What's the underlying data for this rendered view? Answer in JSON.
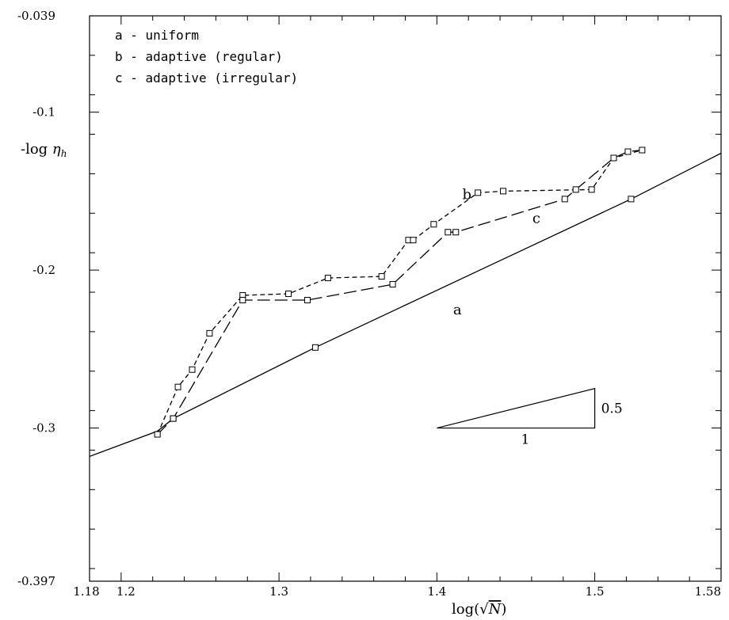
{
  "chart_data": {
    "type": "line",
    "title": "",
    "xlabel": "log(√N)",
    "ylabel": "-log η_h",
    "xlim": [
      1.18,
      1.58
    ],
    "ylim": [
      -0.397,
      -0.039
    ],
    "x_ticks_labeled": [
      "1.18",
      "1.2",
      "1.3",
      "1.4",
      "1.5",
      "1.58"
    ],
    "x_tick_values": [
      1.18,
      1.2,
      1.3,
      1.4,
      1.5,
      1.58
    ],
    "y_ticks_labeled": [
      "-0.039",
      "-0.1",
      "-0.2",
      "-0.3",
      "-0.397"
    ],
    "y_tick_values": [
      -0.039,
      -0.1,
      -0.2,
      -0.3,
      -0.397
    ],
    "grid": false,
    "legend_position": "top-left",
    "legend": [
      "a - uniform",
      "b - adaptive (regular)",
      "c - adaptive (irregular)"
    ],
    "series": [
      {
        "name": "a",
        "line_style": "solid",
        "color": "#000000",
        "x": [
          1.18,
          1.223,
          1.233,
          1.323,
          1.523,
          1.58
        ],
        "y": [
          -0.318,
          -0.302,
          -0.294,
          -0.249,
          -0.155,
          -0.126
        ],
        "marker_x": [
          1.233,
          1.323,
          1.523
        ],
        "marker_y": [
          -0.294,
          -0.249,
          -0.155
        ]
      },
      {
        "name": "b",
        "line_style": "dashed",
        "color": "#000000",
        "x": [
          1.223,
          1.236,
          1.245,
          1.256,
          1.277,
          1.306,
          1.331,
          1.365,
          1.382,
          1.385,
          1.398,
          1.426,
          1.442,
          1.498,
          1.512,
          1.53
        ],
        "y": [
          -0.304,
          -0.274,
          -0.263,
          -0.24,
          -0.216,
          -0.215,
          -0.205,
          -0.204,
          -0.181,
          -0.181,
          -0.171,
          -0.151,
          -0.15,
          -0.149,
          -0.129,
          -0.124
        ],
        "marker_x": [
          1.223,
          1.236,
          1.245,
          1.256,
          1.277,
          1.306,
          1.331,
          1.365,
          1.382,
          1.385,
          1.398,
          1.426,
          1.442,
          1.498,
          1.512,
          1.53
        ],
        "marker_y": [
          -0.304,
          -0.274,
          -0.263,
          -0.24,
          -0.216,
          -0.215,
          -0.205,
          -0.204,
          -0.181,
          -0.181,
          -0.171,
          -0.151,
          -0.15,
          -0.149,
          -0.129,
          -0.124
        ]
      },
      {
        "name": "c",
        "line_style": "long-dashed",
        "color": "#000000",
        "x": [
          1.223,
          1.233,
          1.277,
          1.318,
          1.372,
          1.407,
          1.412,
          1.481,
          1.488,
          1.512,
          1.521,
          1.53
        ],
        "y": [
          -0.304,
          -0.294,
          -0.219,
          -0.219,
          -0.209,
          -0.176,
          -0.176,
          -0.155,
          -0.149,
          -0.129,
          -0.125,
          -0.124
        ],
        "marker_x": [
          1.233,
          1.277,
          1.318,
          1.372,
          1.407,
          1.412,
          1.481,
          1.488,
          1.521
        ],
        "marker_y": [
          -0.294,
          -0.219,
          -0.219,
          -0.209,
          -0.176,
          -0.176,
          -0.155,
          -0.149,
          -0.125
        ]
      }
    ],
    "curve_labels": [
      {
        "text": "a",
        "x": 1.413,
        "y": -0.228
      },
      {
        "text": "b",
        "x": 1.419,
        "y": -0.155
      },
      {
        "text": "c",
        "x": 1.463,
        "y": -0.17
      }
    ],
    "slope_triangle": {
      "x0": 1.4,
      "y0": -0.3,
      "x1": 1.5,
      "y1": -0.275,
      "run_label": "1",
      "rise_label": "0.5"
    }
  }
}
